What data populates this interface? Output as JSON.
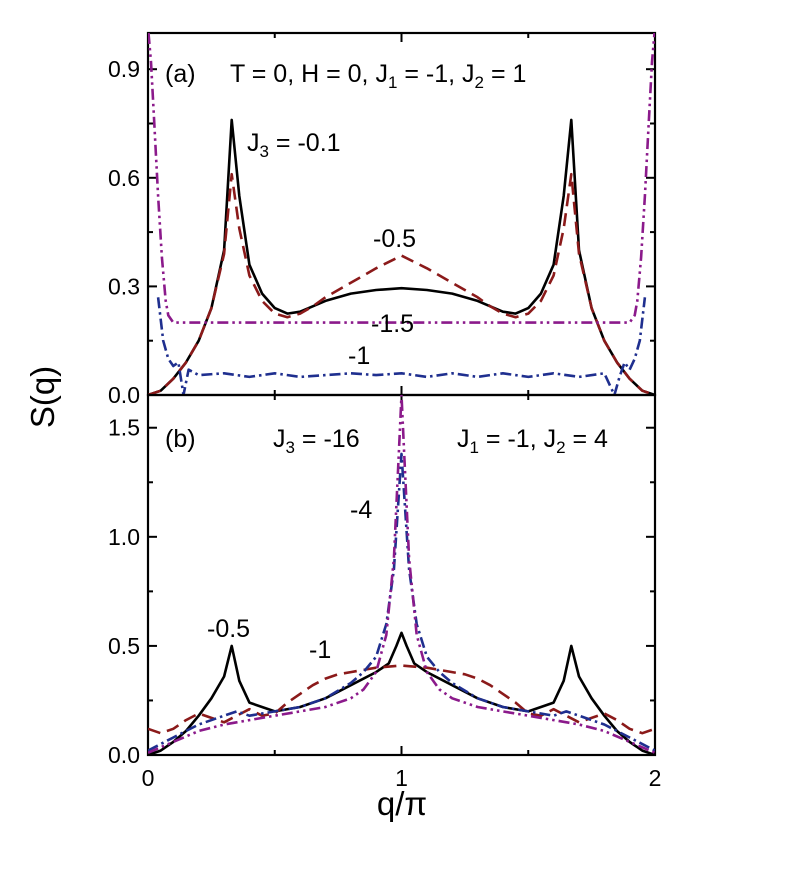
{
  "chart_data": [
    {
      "panel": "(a)",
      "type": "line",
      "annotations": {
        "params": "T = 0, H = 0, J<sub>1</sub> = -1, J<sub>2</sub> = 1",
        "label_J3_01": "J<sub>3</sub> = -0.1",
        "label_05": "-0.5",
        "label_15": "-1.5",
        "label_1": "-1"
      },
      "xlim": [
        0,
        2
      ],
      "ylim": [
        0,
        1.0
      ],
      "yticks": [
        0.0,
        0.3,
        0.6,
        0.9
      ],
      "series": [
        {
          "color": "#000000",
          "style": "solid",
          "x": [
            0,
            0.05,
            0.1,
            0.15,
            0.2,
            0.25,
            0.3,
            0.33,
            0.36,
            0.4,
            0.45,
            0.5,
            0.55,
            0.6,
            0.65,
            0.7,
            0.8,
            0.9,
            1.0,
            1.1,
            1.2,
            1.3,
            1.35,
            1.4,
            1.45,
            1.5,
            1.55,
            1.6,
            1.64,
            1.67,
            1.7,
            1.75,
            1.8,
            1.85,
            1.9,
            1.95,
            2.0
          ],
          "y": [
            0.0,
            0.012,
            0.045,
            0.09,
            0.15,
            0.24,
            0.4,
            0.76,
            0.55,
            0.36,
            0.28,
            0.24,
            0.225,
            0.23,
            0.245,
            0.26,
            0.28,
            0.29,
            0.295,
            0.29,
            0.28,
            0.26,
            0.245,
            0.23,
            0.225,
            0.24,
            0.28,
            0.36,
            0.55,
            0.76,
            0.4,
            0.24,
            0.15,
            0.09,
            0.045,
            0.012,
            0.0
          ]
        },
        {
          "color": "#8b1a1a",
          "style": "dash",
          "x": [
            0,
            0.05,
            0.1,
            0.15,
            0.2,
            0.25,
            0.3,
            0.33,
            0.36,
            0.4,
            0.45,
            0.5,
            0.55,
            0.6,
            0.65,
            0.7,
            0.8,
            0.9,
            1.0,
            1.1,
            1.2,
            1.3,
            1.35,
            1.4,
            1.45,
            1.5,
            1.55,
            1.6,
            1.64,
            1.67,
            1.7,
            1.75,
            1.8,
            1.85,
            1.9,
            1.95,
            2.0
          ],
          "y": [
            0.0,
            0.012,
            0.045,
            0.09,
            0.15,
            0.24,
            0.39,
            0.61,
            0.46,
            0.33,
            0.26,
            0.225,
            0.215,
            0.225,
            0.245,
            0.27,
            0.31,
            0.35,
            0.385,
            0.35,
            0.31,
            0.27,
            0.245,
            0.225,
            0.215,
            0.225,
            0.26,
            0.33,
            0.46,
            0.61,
            0.39,
            0.24,
            0.15,
            0.09,
            0.045,
            0.012,
            0.0
          ]
        },
        {
          "color": "#8b1a8b",
          "style": "dashdotdot",
          "x": [
            0.002,
            0.012,
            0.025,
            0.04,
            0.055,
            0.07,
            0.08,
            0.1,
            0.3,
            0.6,
            1.0,
            1.4,
            1.7,
            1.9,
            1.92,
            1.93,
            1.945,
            1.96,
            1.975,
            1.988,
            1.998
          ],
          "y": [
            1.0,
            0.92,
            0.75,
            0.55,
            0.38,
            0.26,
            0.22,
            0.2,
            0.2,
            0.2,
            0.2,
            0.2,
            0.2,
            0.2,
            0.22,
            0.26,
            0.38,
            0.55,
            0.75,
            0.92,
            1.0
          ]
        },
        {
          "color": "#1f2f8f",
          "style": "dashdot",
          "x": [
            0.04,
            0.06,
            0.08,
            0.1,
            0.12,
            0.14,
            0.16,
            0.2,
            0.3,
            0.4,
            0.5,
            0.6,
            0.7,
            0.8,
            0.9,
            1.0,
            1.1,
            1.2,
            1.3,
            1.4,
            1.5,
            1.6,
            1.7,
            1.8,
            1.84,
            1.86,
            1.88,
            1.9,
            1.92,
            1.94,
            1.96
          ],
          "y": [
            0.27,
            0.15,
            0.1,
            0.08,
            0.09,
            0.0,
            0.07,
            0.055,
            0.06,
            0.05,
            0.06,
            0.05,
            0.055,
            0.06,
            0.055,
            0.06,
            0.05,
            0.06,
            0.05,
            0.06,
            0.05,
            0.06,
            0.05,
            0.06,
            0.0,
            0.05,
            0.09,
            0.07,
            0.1,
            0.15,
            0.27
          ]
        }
      ]
    },
    {
      "panel": "(b)",
      "type": "line",
      "annotations": {
        "label_J3_16": "J<sub>3</sub> = -16",
        "params": "J<sub>1</sub> = -1, J<sub>2</sub> = 4",
        "label_4": "-4",
        "label_05": "-0.5",
        "label_1": "-1"
      },
      "xlim": [
        0,
        2
      ],
      "ylim": [
        0,
        1.65
      ],
      "xticks": [
        0,
        1,
        2
      ],
      "yticks": [
        0.0,
        0.5,
        1.0,
        1.5
      ],
      "series": [
        {
          "color": "#000000",
          "style": "solid",
          "x": [
            0,
            0.05,
            0.1,
            0.15,
            0.2,
            0.25,
            0.3,
            0.33,
            0.36,
            0.4,
            0.5,
            0.6,
            0.7,
            0.8,
            0.9,
            0.95,
            0.98,
            1.0,
            1.02,
            1.05,
            1.1,
            1.2,
            1.3,
            1.4,
            1.5,
            1.6,
            1.64,
            1.67,
            1.7,
            1.75,
            1.8,
            1.85,
            1.9,
            1.95,
            2.0
          ],
          "y": [
            0.0,
            0.02,
            0.06,
            0.11,
            0.18,
            0.26,
            0.36,
            0.5,
            0.34,
            0.24,
            0.2,
            0.22,
            0.26,
            0.32,
            0.38,
            0.42,
            0.5,
            0.56,
            0.5,
            0.42,
            0.38,
            0.32,
            0.26,
            0.22,
            0.2,
            0.24,
            0.34,
            0.5,
            0.36,
            0.26,
            0.18,
            0.11,
            0.06,
            0.02,
            0.0
          ]
        },
        {
          "color": "#8b1a1a",
          "style": "dash",
          "x": [
            0,
            0.05,
            0.1,
            0.15,
            0.2,
            0.25,
            0.3,
            0.35,
            0.4,
            0.45,
            0.5,
            0.55,
            0.6,
            0.65,
            0.7,
            0.75,
            0.8,
            0.9,
            1.0,
            1.1,
            1.2,
            1.25,
            1.3,
            1.35,
            1.4,
            1.45,
            1.5,
            1.55,
            1.6,
            1.65,
            1.7,
            1.75,
            1.8,
            1.85,
            1.9,
            1.95,
            2.0
          ],
          "y": [
            0.12,
            0.1,
            0.12,
            0.16,
            0.19,
            0.17,
            0.15,
            0.18,
            0.21,
            0.18,
            0.19,
            0.24,
            0.28,
            0.32,
            0.35,
            0.37,
            0.38,
            0.4,
            0.41,
            0.4,
            0.38,
            0.37,
            0.35,
            0.32,
            0.28,
            0.24,
            0.19,
            0.18,
            0.21,
            0.18,
            0.15,
            0.17,
            0.19,
            0.16,
            0.12,
            0.1,
            0.12
          ]
        },
        {
          "color": "#1f2f8f",
          "style": "dashdot",
          "x": [
            0,
            0.1,
            0.2,
            0.3,
            0.35,
            0.4,
            0.5,
            0.6,
            0.7,
            0.8,
            0.85,
            0.9,
            0.94,
            0.97,
            1.0,
            1.03,
            1.06,
            1.1,
            1.15,
            1.2,
            1.3,
            1.4,
            1.5,
            1.6,
            1.65,
            1.7,
            1.8,
            1.9,
            2.0
          ],
          "y": [
            0.02,
            0.08,
            0.14,
            0.18,
            0.2,
            0.18,
            0.2,
            0.22,
            0.26,
            0.33,
            0.38,
            0.45,
            0.6,
            0.85,
            1.38,
            0.85,
            0.6,
            0.45,
            0.38,
            0.33,
            0.26,
            0.22,
            0.2,
            0.18,
            0.2,
            0.18,
            0.14,
            0.08,
            0.02
          ]
        },
        {
          "color": "#8b1a8b",
          "style": "dashdotdot",
          "x": [
            0,
            0.1,
            0.2,
            0.3,
            0.4,
            0.5,
            0.6,
            0.7,
            0.8,
            0.85,
            0.9,
            0.94,
            0.97,
            0.99,
            1.0,
            1.01,
            1.03,
            1.06,
            1.1,
            1.15,
            1.2,
            1.3,
            1.4,
            1.5,
            1.6,
            1.7,
            1.8,
            1.9,
            2.0
          ],
          "y": [
            0.01,
            0.06,
            0.11,
            0.14,
            0.16,
            0.18,
            0.2,
            0.22,
            0.26,
            0.3,
            0.38,
            0.55,
            0.9,
            1.4,
            1.65,
            1.4,
            0.9,
            0.55,
            0.38,
            0.3,
            0.26,
            0.22,
            0.2,
            0.18,
            0.16,
            0.14,
            0.11,
            0.06,
            0.01
          ]
        }
      ]
    }
  ],
  "axes": {
    "xlabel": "q/π",
    "ylabel": "S(q)",
    "panel_a_tick_labels": [
      "0.0",
      "0.3",
      "0.6",
      "0.9"
    ],
    "panel_b_tick_labels": [
      "0.0",
      "0.5",
      "1.0",
      "1.5"
    ],
    "x_tick_labels": [
      "0",
      "1",
      "2"
    ]
  }
}
